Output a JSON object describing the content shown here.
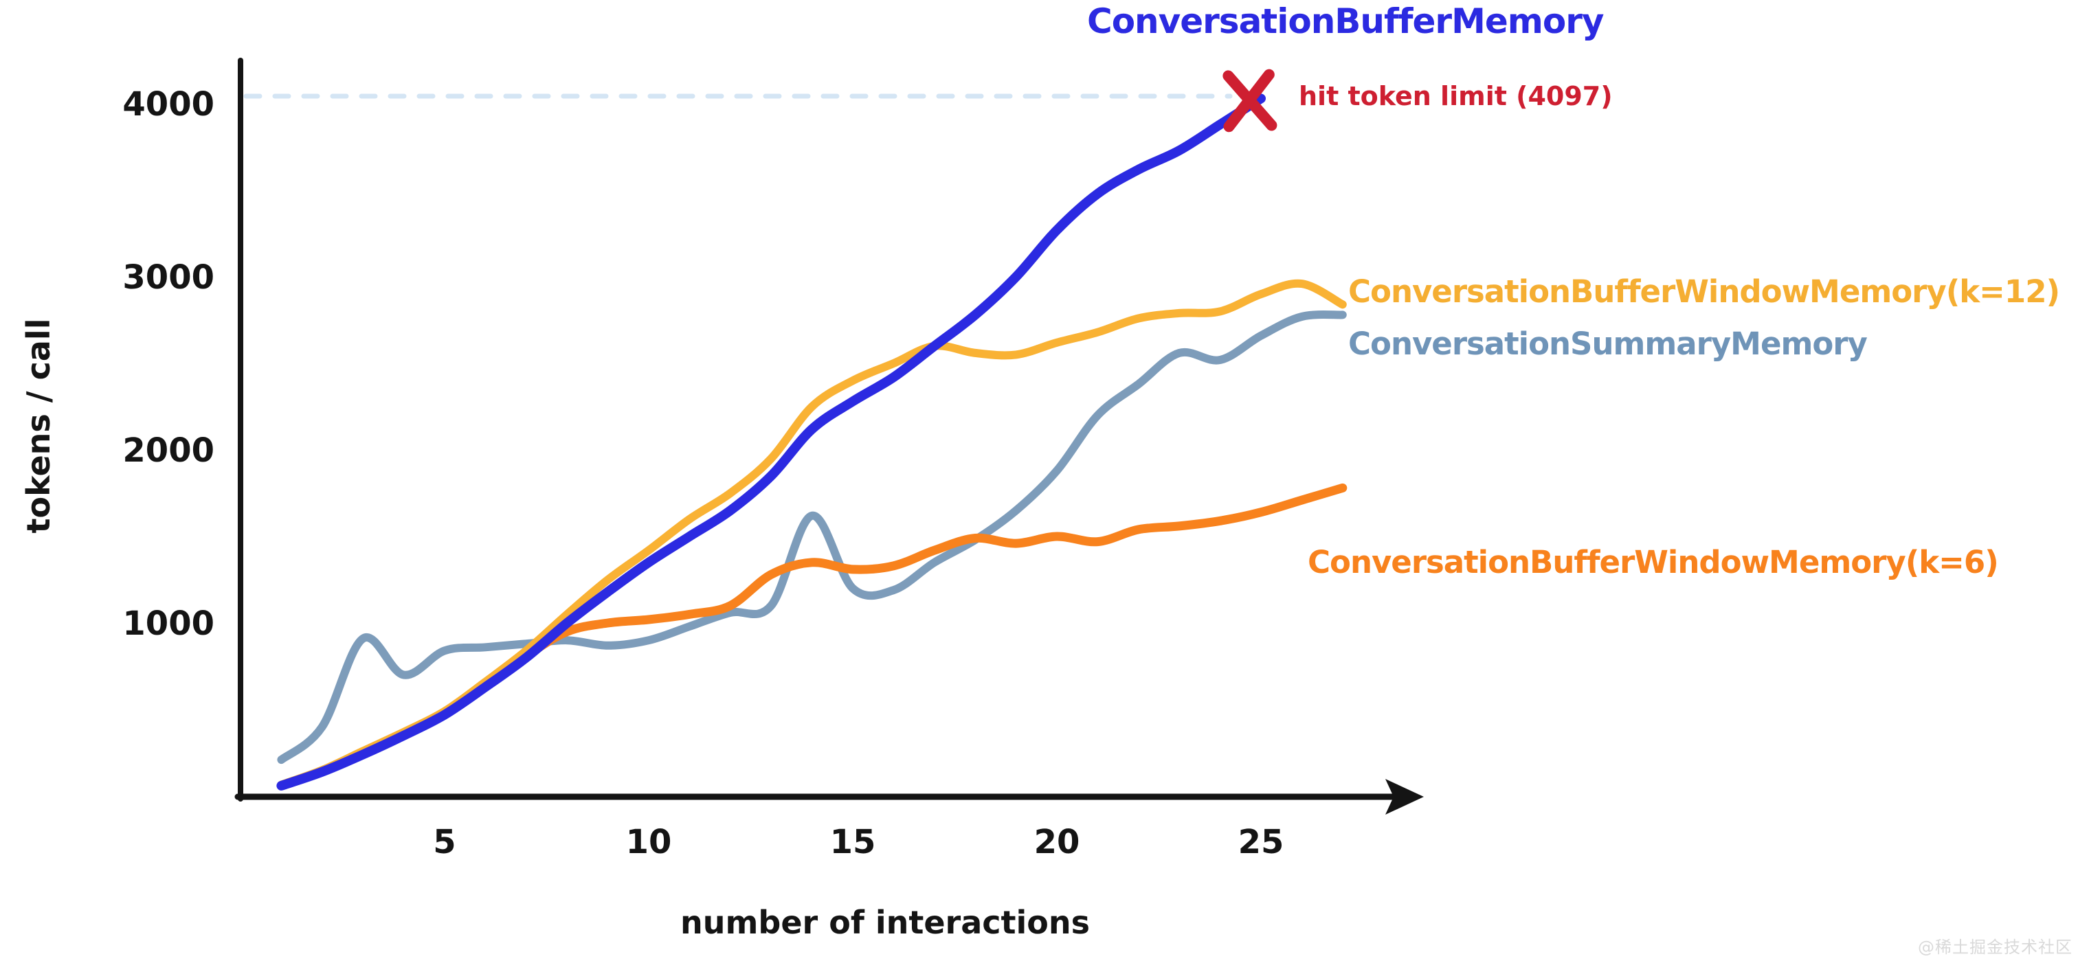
{
  "watermark": "@稀土掘金技术社区",
  "colors": {
    "buffer_memory": "#2b2ae1",
    "buffer_window_k12": "#f9b234",
    "summary_memory": "#7d9cba",
    "buffer_window_k6": "#f8821d",
    "limit_annotation": "#ce1f31",
    "limit_dash_line": "#d4e5f4",
    "axis": "#141414"
  },
  "annotation": {
    "text": "hit token limit (4097)",
    "token_limit": 4097
  },
  "chart_data": {
    "type": "line",
    "title": "",
    "xlabel": "number of interactions",
    "ylabel": "tokens / call",
    "x_ticks": [
      5,
      10,
      15,
      20,
      25
    ],
    "y_ticks": [
      1000,
      2000,
      3000,
      4000
    ],
    "xlim": [
      0,
      29
    ],
    "ylim": [
      0,
      4250
    ],
    "grid": false,
    "legend_position": "right-of-line-ends",
    "x": [
      1,
      2,
      3,
      4,
      5,
      6,
      7,
      8,
      9,
      10,
      11,
      12,
      13,
      14,
      15,
      16,
      17,
      18,
      19,
      20,
      21,
      22,
      23,
      24,
      25,
      26,
      27
    ],
    "series": [
      {
        "name": "ConversationBufferMemory",
        "color": "#2b2ae1",
        "end_marker": "red-x",
        "values": [
          60,
          140,
          240,
          350,
          470,
          630,
          800,
          1000,
          1180,
          1350,
          1500,
          1650,
          1850,
          2120,
          2280,
          2420,
          2600,
          2780,
          3000,
          3270,
          3480,
          3620,
          3730,
          3880,
          4030,
          null,
          null
        ]
      },
      {
        "name": "ConversationBufferWindowMemory(k=12)",
        "color": "#f9b234",
        "end_marker": "none",
        "values": [
          65,
          150,
          260,
          370,
          490,
          660,
          840,
          1050,
          1250,
          1420,
          1600,
          1750,
          1950,
          2250,
          2400,
          2500,
          2600,
          2560,
          2550,
          2620,
          2680,
          2760,
          2790,
          2800,
          2900,
          2960,
          2840
        ]
      },
      {
        "name": "ConversationSummaryMemory",
        "color": "#7d9cba",
        "end_marker": "none",
        "values": [
          210,
          400,
          910,
          700,
          840,
          860,
          880,
          900,
          870,
          900,
          980,
          1060,
          1100,
          1620,
          1200,
          1190,
          1350,
          1480,
          1650,
          1880,
          2200,
          2380,
          2560,
          2520,
          2660,
          2770,
          2780
        ]
      },
      {
        "name": "ConversationBufferWindowMemory(k=6)",
        "color": "#f8821d",
        "end_marker": "none",
        "values": [
          60,
          140,
          250,
          360,
          480,
          640,
          810,
          950,
          1000,
          1020,
          1050,
          1100,
          1280,
          1350,
          1310,
          1330,
          1420,
          1490,
          1460,
          1500,
          1470,
          1540,
          1560,
          1590,
          1640,
          1710,
          1780
        ]
      }
    ],
    "token_limit_guide": {
      "value": 4097,
      "style": "dashed",
      "color": "#d4e5f4"
    }
  }
}
